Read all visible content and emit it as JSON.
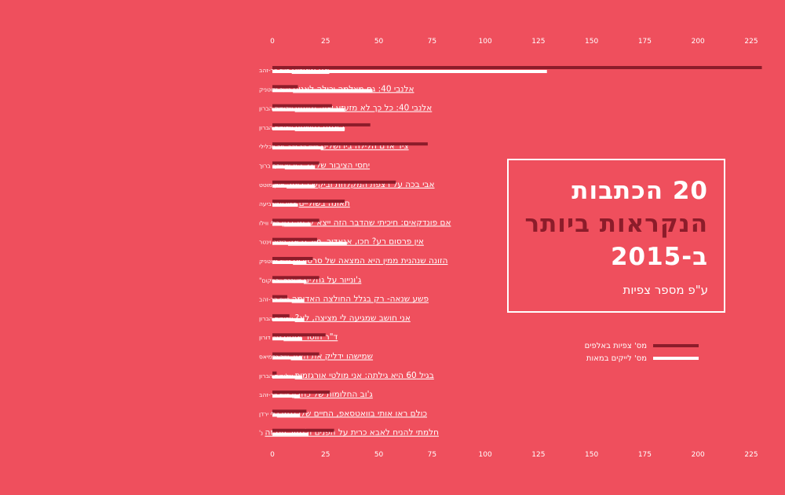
{
  "title": {
    "line1": "20 הכתבות",
    "line2": "הנקראות ביותר",
    "line3": "ב-2015",
    "subtitle": "ע\"פ מספר צפיות"
  },
  "legend": [
    {
      "label": "מס' צפיות באלפים",
      "color": "#8c1c2a"
    },
    {
      "label": "מס' לייקים במאות",
      "color": "#ffffff"
    }
  ],
  "colors": {
    "background": "#ef4f5d",
    "views": "#8c1c2a",
    "likes": "#ffffff"
  },
  "chart_data": {
    "type": "bar",
    "orientation": "horizontal",
    "xlim": [
      0,
      230
    ],
    "ticks": [
      0,
      25,
      50,
      75,
      100,
      125,
      150,
      175,
      200,
      225
    ],
    "tick_labels": [
      "0",
      "25",
      "50",
      "75",
      "100",
      "125",
      "150",
      "175",
      "200",
      "225"
    ],
    "categories": [
      {
        "title": "אני מאשים",
        "author": "חיים הר-זהב"
      },
      {
        "title": "אלנבי 40: גם מצלמה יכולה לאנוס",
        "author": "נועה זלוטניק"
      },
      {
        "title": "אלנבי 40: כל כך לא מזעזע שזה מזעזע",
        "author": "שלומית הברון"
      },
      {
        "title": "האמת נחשפת",
        "author": "שלומית הברון"
      },
      {
        "title": "ציד אדם הלילה בירושלים",
        "author": "חיים הר-זהב, ניב חכלילי"
      },
      {
        "title": "יחסי הציבור של גל הירש",
        "author": "יוסף ברוך"
      },
      {
        "title": "אבי בכה על רצפת המקלחת וביקש הביתה",
        "author": "מורן מוטט"
      },
      {
        "title": "תאונה בשוליים",
        "author": "ספא אבורביעה"
      },
      {
        "title": "אם פונדקאים: חיכיתי שהדבר הזה ייצא לי מהבטן",
        "author": "רילי ווילו"
      },
      {
        "title": "אין פרסום רע? חכו, אגאדיר, מיד נראה",
        "author": "לידור וינטר"
      },
      {
        "title": "הזונה שנהנית ממין היא המצאה של סרסורים",
        "author": "נועה זלוטניק"
      },
      {
        "title": "ג'ונייור על גחלים",
        "author": "מערכת \"המקום\""
      },
      {
        "title": "פשע שנאה- רק בגלל החולצה האדומה",
        "author": "חיים הר-זהב"
      },
      {
        "title": "אני חושב שמגיעה לי מציצה, לא?",
        "author": "שלומית הברון"
      },
      {
        "title": "ד\"ר חוסר אונים",
        "author": "דנה דורון"
      },
      {
        "title": "שמישהו ידליק את האור",
        "author": "שיר נחמיאס"
      },
      {
        "title": "בגיל 60 היא גילתה: אני מולטי אורגזמית",
        "author": "שלומית הברון"
      },
      {
        "title": "ג'וב החלומות של כחלון",
        "author": "חיים הר-זהב"
      },
      {
        "title": "כולם ראו אותי בוואטסאפ, החיים שלי נגמרו",
        "author": "לי ירדן"
      },
      {
        "title": "חלמתי להניח לאבא כרית על הפנים ולגמור עם זה",
        "author": "נ'"
      }
    ],
    "series": [
      {
        "name": "מס' צפיות באלפים",
        "color": "#8c1c2a",
        "values": [
          230,
          12,
          28,
          46,
          73,
          22,
          58,
          34,
          22,
          21,
          19,
          22,
          7,
          8,
          25,
          22,
          2,
          27,
          16,
          29
        ]
      },
      {
        "name": "מס' לייקים במאות",
        "color": "#ffffff",
        "values": [
          129,
          47,
          34,
          34,
          24,
          20,
          20,
          12,
          18,
          35,
          16,
          16,
          15,
          15,
          14,
          14,
          14,
          13,
          13,
          17
        ]
      }
    ]
  }
}
